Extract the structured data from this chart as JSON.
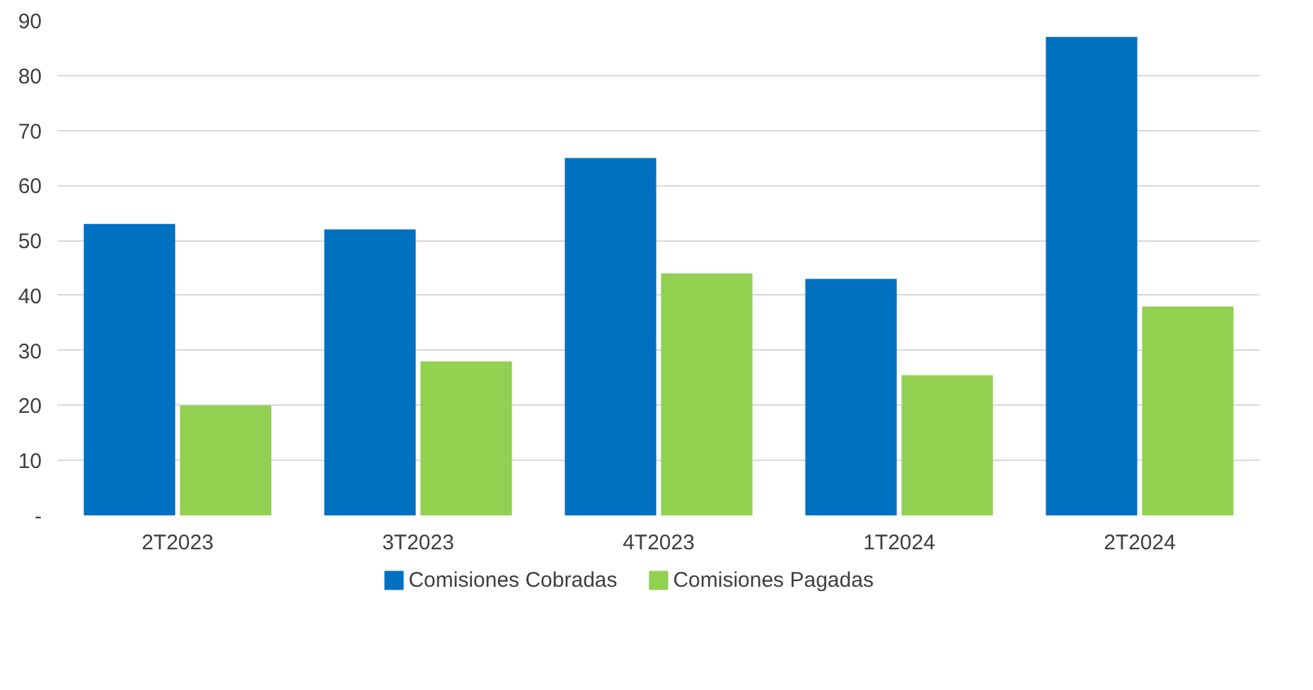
{
  "chart_data": {
    "type": "bar",
    "categories": [
      "2T2023",
      "3T2023",
      "4T2023",
      "1T2024",
      "2T2024"
    ],
    "series": [
      {
        "name": "Comisiones Cobradas",
        "color": "#0070c0",
        "values": [
          53,
          52,
          65,
          43,
          87
        ]
      },
      {
        "name": "Comisiones Pagadas",
        "color": "#92d050",
        "values": [
          20,
          28,
          44,
          25.5,
          38
        ]
      }
    ],
    "ylim": [
      0,
      90
    ],
    "yticks": [
      {
        "value": 0,
        "label": "-"
      },
      10,
      20,
      30,
      40,
      50,
      60,
      70,
      80,
      90
    ],
    "grid": "y",
    "legend": "bottom"
  }
}
